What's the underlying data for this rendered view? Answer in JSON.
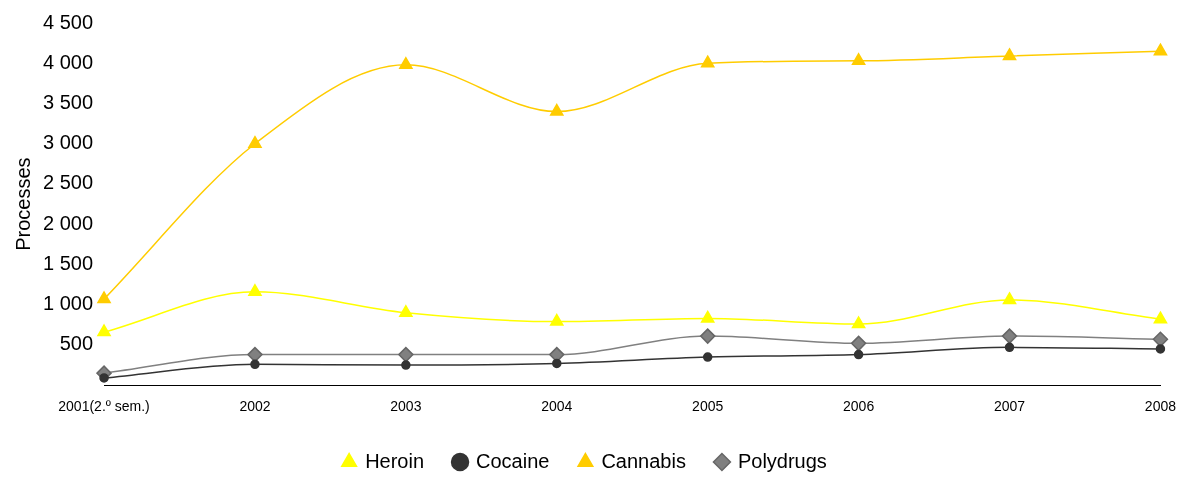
{
  "chart_data": {
    "type": "line",
    "ylabel": "Processes",
    "categories": [
      "2001(2.º sem.)",
      "2002",
      "2003",
      "2004",
      "2005",
      "2006",
      "2007",
      "2008"
    ],
    "series": [
      {
        "name": "Heroin",
        "color": "#ffff00",
        "marker": "triangle",
        "values": [
          660,
          1160,
          900,
          790,
          830,
          760,
          1060,
          820
        ]
      },
      {
        "name": "Cocaine",
        "color": "#333333",
        "marker": "circle",
        "values": [
          90,
          260,
          250,
          270,
          350,
          380,
          470,
          450
        ]
      },
      {
        "name": "Cannabis",
        "color": "#ffcc00",
        "marker": "triangle",
        "values": [
          1070,
          3000,
          3980,
          3400,
          4000,
          4030,
          4090,
          4150
        ]
      },
      {
        "name": "Polydrugs",
        "color": "#808080",
        "marker": "diamond",
        "values": [
          150,
          380,
          380,
          380,
          610,
          520,
          610,
          570
        ]
      }
    ],
    "ylim": [
      0,
      4500
    ],
    "yticks": [
      {
        "value": 500,
        "label": "500"
      },
      {
        "value": 1000,
        "label": "1 000"
      },
      {
        "value": 1500,
        "label": "1 500"
      },
      {
        "value": 2000,
        "label": "2 000"
      },
      {
        "value": 2500,
        "label": "2 500"
      },
      {
        "value": 3000,
        "label": "3 000"
      },
      {
        "value": 3500,
        "label": "3 500"
      },
      {
        "value": 4000,
        "label": "4 000"
      },
      {
        "value": 4500,
        "label": "4 500"
      }
    ],
    "grid": false,
    "legend": "bottom"
  }
}
